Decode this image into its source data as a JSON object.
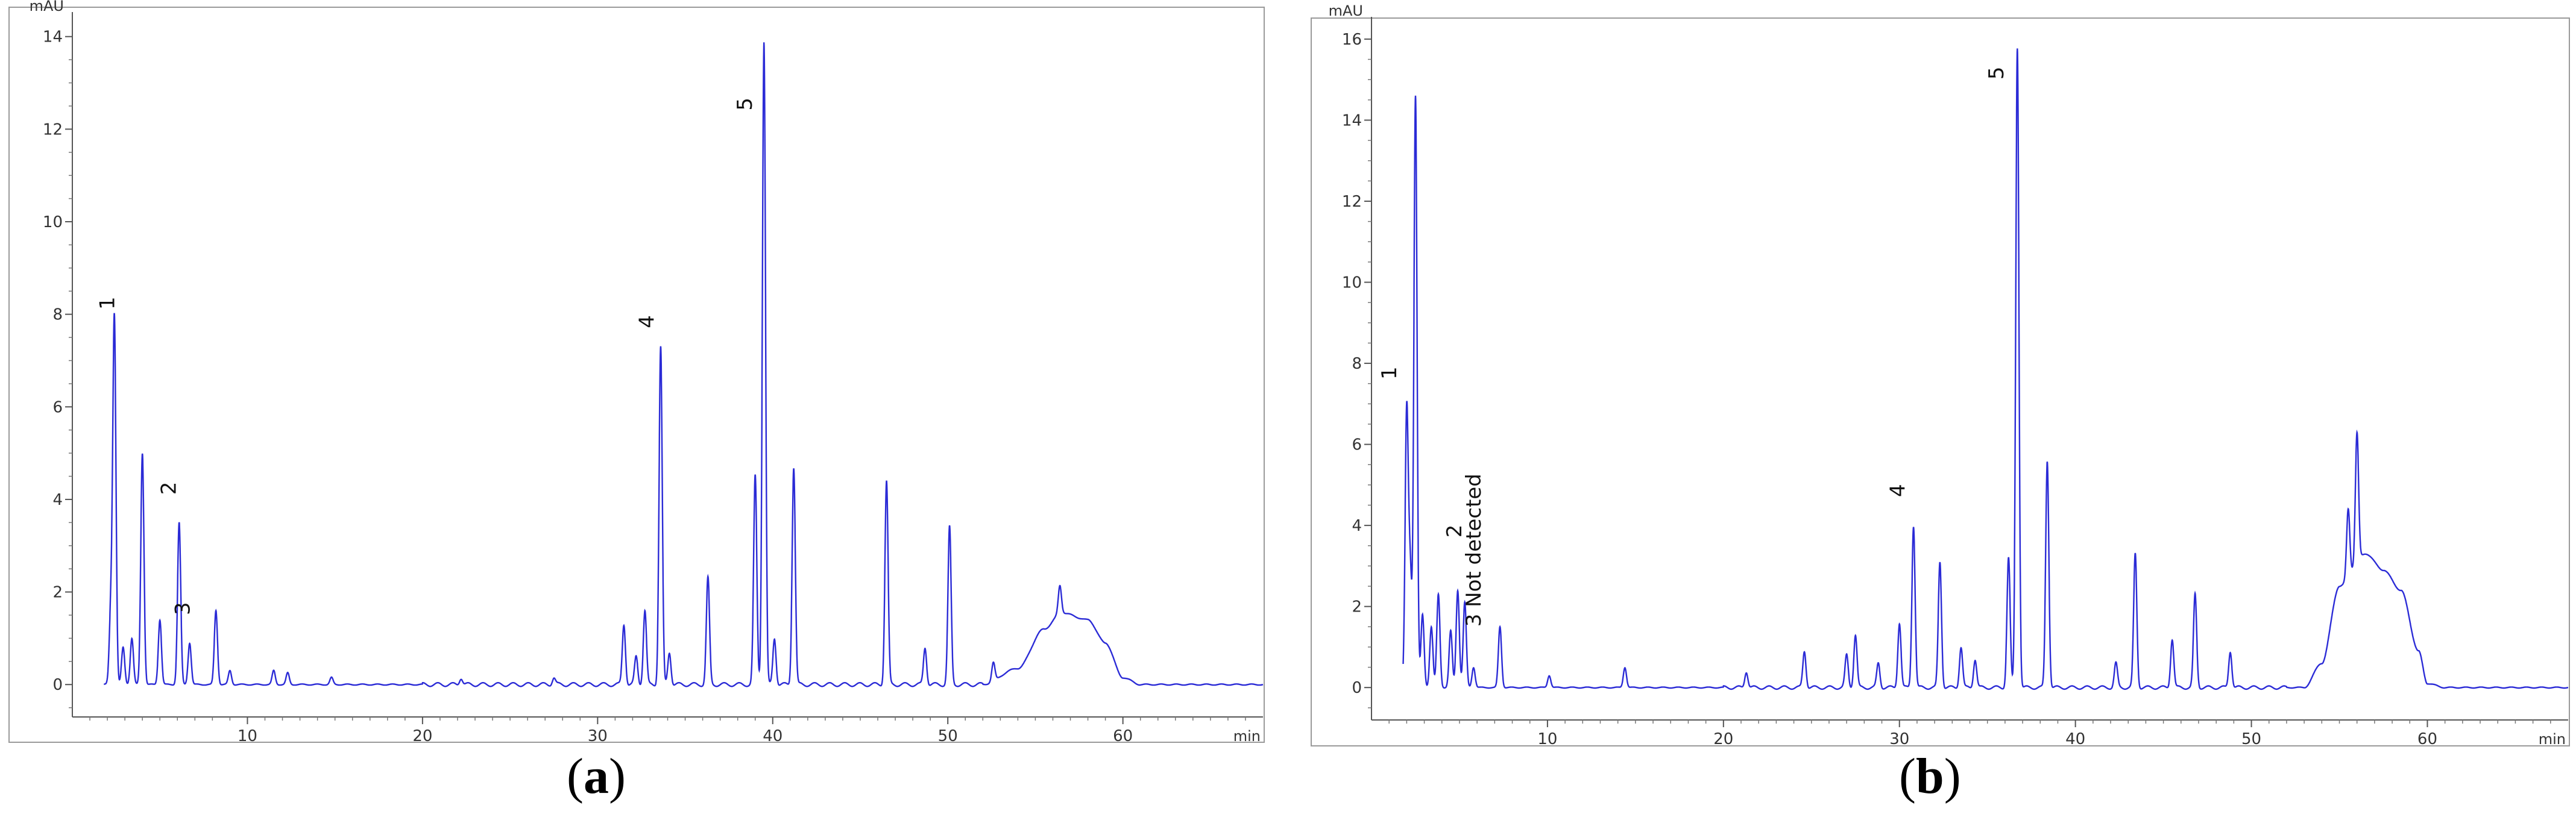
{
  "panels": [
    {
      "caption_open": "(",
      "caption_letter": "a",
      "caption_close": ")",
      "chart_data": {
        "type": "line",
        "ylabel": "mAU",
        "xlabel": "min",
        "xlim": [
          0,
          68
        ],
        "ylim": [
          -0.7,
          14.4
        ],
        "xticks": [
          10,
          20,
          30,
          40,
          50,
          60
        ],
        "yticks": [
          0,
          2,
          4,
          6,
          8,
          10,
          12,
          14
        ],
        "series_color": "#2b2bd6",
        "baseline": 0.0,
        "background_shape": [
          {
            "x": 52,
            "y": 0.0
          },
          {
            "x": 54,
            "y": 0.35
          },
          {
            "x": 55.5,
            "y": 1.2
          },
          {
            "x": 56.5,
            "y": 1.55
          },
          {
            "x": 58,
            "y": 1.4
          },
          {
            "x": 59,
            "y": 0.9
          },
          {
            "x": 60,
            "y": 0.15
          },
          {
            "x": 61,
            "y": 0.0
          }
        ],
        "peaks": [
          {
            "x": 2.2,
            "y": 1.6
          },
          {
            "x": 2.4,
            "y": 7.9
          },
          {
            "x": 2.9,
            "y": 0.8
          },
          {
            "x": 3.4,
            "y": 1.0
          },
          {
            "x": 4.0,
            "y": 5.0
          },
          {
            "x": 5.0,
            "y": 1.4
          },
          {
            "x": 6.1,
            "y": 3.5
          },
          {
            "x": 6.7,
            "y": 0.9
          },
          {
            "x": 8.2,
            "y": 1.6
          },
          {
            "x": 9.0,
            "y": 0.3
          },
          {
            "x": 11.5,
            "y": 0.3
          },
          {
            "x": 12.3,
            "y": 0.25
          },
          {
            "x": 14.8,
            "y": 0.15
          },
          {
            "x": 22.2,
            "y": 0.15
          },
          {
            "x": 27.5,
            "y": 0.15
          },
          {
            "x": 31.5,
            "y": 1.3
          },
          {
            "x": 32.2,
            "y": 0.6
          },
          {
            "x": 32.7,
            "y": 1.6
          },
          {
            "x": 33.6,
            "y": 7.3
          },
          {
            "x": 34.1,
            "y": 0.7
          },
          {
            "x": 36.3,
            "y": 2.3
          },
          {
            "x": 39.0,
            "y": 4.5
          },
          {
            "x": 39.5,
            "y": 13.9
          },
          {
            "x": 40.1,
            "y": 1.0
          },
          {
            "x": 41.2,
            "y": 4.7
          },
          {
            "x": 46.5,
            "y": 4.4
          },
          {
            "x": 48.7,
            "y": 0.8
          },
          {
            "x": 50.1,
            "y": 3.4
          },
          {
            "x": 52.6,
            "y": 0.4
          },
          {
            "x": 56.4,
            "y": 0.6
          }
        ],
        "annotations": [
          {
            "text": "1",
            "x": 2.4,
            "y": 8.1
          },
          {
            "text": "2",
            "x": 5.9,
            "y": 4.1
          },
          {
            "text": "3",
            "x": 6.7,
            "y": 1.5
          },
          {
            "text": "4",
            "x": 33.2,
            "y": 7.7
          },
          {
            "text": "5",
            "x": 38.8,
            "y": 12.4
          }
        ]
      }
    },
    {
      "caption_open": "(",
      "caption_letter": "b",
      "caption_close": ")",
      "chart_data": {
        "type": "line",
        "ylabel": "mAU",
        "xlabel": "min",
        "xlim": [
          0,
          68
        ],
        "ylim": [
          -0.8,
          16.4
        ],
        "xticks": [
          10,
          20,
          30,
          40,
          50,
          60
        ],
        "yticks": [
          0,
          2,
          4,
          6,
          8,
          10,
          12,
          14,
          16
        ],
        "series_color": "#2b2bd6",
        "baseline": 0.0,
        "background_shape": [
          {
            "x": 53,
            "y": 0.0
          },
          {
            "x": 54,
            "y": 0.6
          },
          {
            "x": 55,
            "y": 2.5
          },
          {
            "x": 56.5,
            "y": 3.3
          },
          {
            "x": 57.5,
            "y": 2.9
          },
          {
            "x": 58.5,
            "y": 2.4
          },
          {
            "x": 59.5,
            "y": 0.9
          },
          {
            "x": 60,
            "y": 0.1
          },
          {
            "x": 61,
            "y": 0.0
          }
        ],
        "peaks": [
          {
            "x": 2.0,
            "y": 6.8
          },
          {
            "x": 2.2,
            "y": 2.8
          },
          {
            "x": 2.5,
            "y": 14.6
          },
          {
            "x": 2.9,
            "y": 1.8
          },
          {
            "x": 3.4,
            "y": 1.5
          },
          {
            "x": 3.8,
            "y": 2.3
          },
          {
            "x": 4.5,
            "y": 1.4
          },
          {
            "x": 4.9,
            "y": 2.4
          },
          {
            "x": 5.3,
            "y": 2.1
          },
          {
            "x": 5.8,
            "y": 0.5
          },
          {
            "x": 7.3,
            "y": 1.5
          },
          {
            "x": 10.1,
            "y": 0.3
          },
          {
            "x": 14.4,
            "y": 0.5
          },
          {
            "x": 21.3,
            "y": 0.4
          },
          {
            "x": 24.6,
            "y": 0.9
          },
          {
            "x": 27.0,
            "y": 0.8
          },
          {
            "x": 27.5,
            "y": 1.3
          },
          {
            "x": 28.8,
            "y": 0.6
          },
          {
            "x": 30.0,
            "y": 1.6
          },
          {
            "x": 30.8,
            "y": 4.0
          },
          {
            "x": 32.3,
            "y": 3.1
          },
          {
            "x": 33.5,
            "y": 1.0
          },
          {
            "x": 34.3,
            "y": 0.7
          },
          {
            "x": 36.2,
            "y": 3.2
          },
          {
            "x": 36.7,
            "y": 15.8
          },
          {
            "x": 38.4,
            "y": 5.6
          },
          {
            "x": 42.3,
            "y": 0.6
          },
          {
            "x": 43.4,
            "y": 3.3
          },
          {
            "x": 45.5,
            "y": 1.2
          },
          {
            "x": 46.8,
            "y": 2.3
          },
          {
            "x": 48.8,
            "y": 0.9
          },
          {
            "x": 55.5,
            "y": 1.7
          },
          {
            "x": 56.0,
            "y": 3.2
          }
        ],
        "annotations": [
          {
            "text": "1",
            "x": 1.4,
            "y": 7.6
          },
          {
            "text": "2",
            "x": 5.1,
            "y": 3.7
          },
          {
            "text": "3 Not detected",
            "x": 6.2,
            "y": 1.5
          },
          {
            "text": "4",
            "x": 30.3,
            "y": 4.7
          },
          {
            "text": "5",
            "x": 35.9,
            "y": 15.0
          }
        ]
      }
    }
  ]
}
